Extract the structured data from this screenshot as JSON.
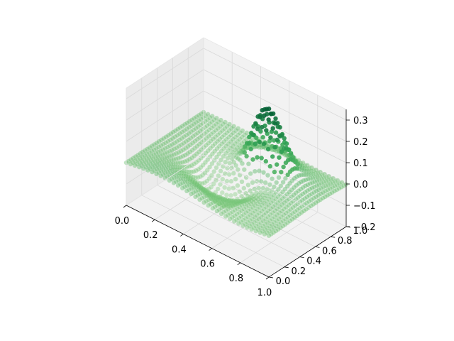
{
  "chart_data": {
    "type": "scatter",
    "projection": "3d",
    "title": "",
    "xlabel": "",
    "ylabel": "",
    "zlabel": "",
    "xlim": [
      0,
      1
    ],
    "ylim": [
      0,
      1
    ],
    "zlim": [
      -0.2,
      0.35
    ],
    "x_ticks": [
      "0.0",
      "0.2",
      "0.4",
      "0.6",
      "0.8",
      "1.0"
    ],
    "y_ticks": [
      "0.0",
      "0.2",
      "0.4",
      "0.6",
      "0.8",
      "1.0"
    ],
    "z_ticks": [
      "−0.2",
      "−0.1",
      "0.0",
      "0.1",
      "0.2",
      "0.3"
    ],
    "grid": true,
    "colormap": "Greens",
    "pane_color": "#f2f2f2",
    "grid_color": "#d9d9d9",
    "surface": "z = 0.3 * exp(-((x-0.6)^2+(y-0.7)^2)/0.02) - 0.15 * exp(-((x-0.45)^2+(y-0.45)^2)/0.04) sampled on a regular grid over [0,1]x[0,1]"
  }
}
